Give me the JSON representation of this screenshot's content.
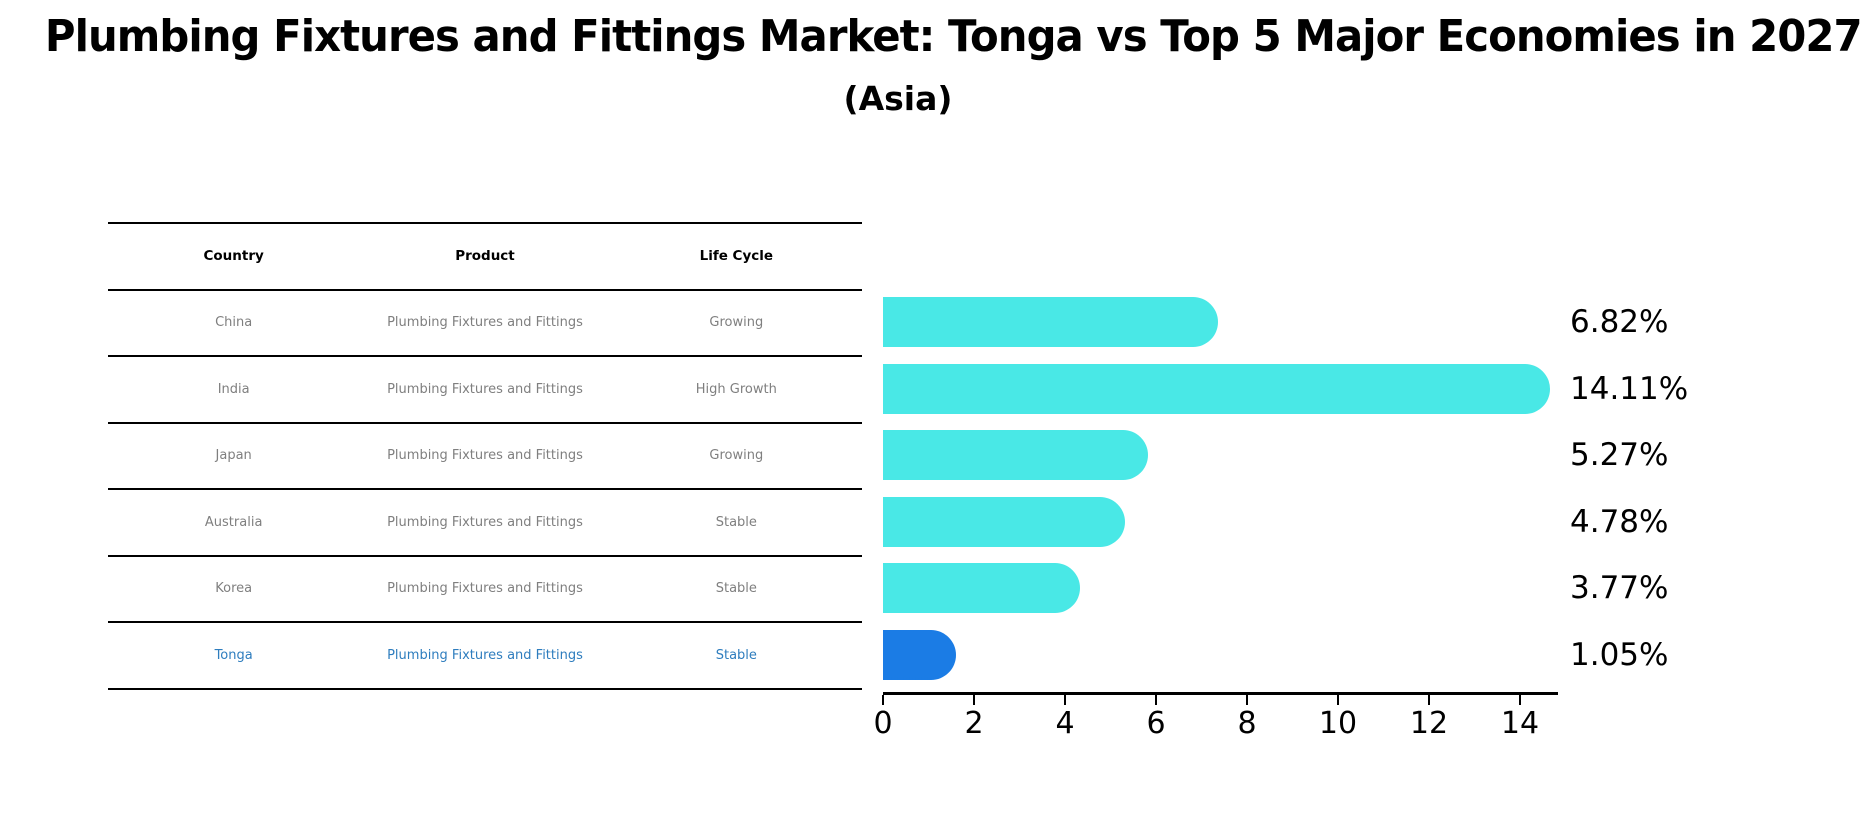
{
  "header": {
    "title": "Plumbing Fixtures and Fittings Market: Tonga vs Top 5 Major Economies in 2027",
    "subtitle": "(Asia)"
  },
  "table": {
    "headers": [
      "Country",
      "Product",
      "Life Cycle"
    ],
    "rows": [
      {
        "country": "China",
        "product": "Plumbing Fixtures and Fittings",
        "life_cycle": "Growing",
        "highlighted": false
      },
      {
        "country": "India",
        "product": "Plumbing Fixtures and Fittings",
        "life_cycle": "High Growth",
        "highlighted": false
      },
      {
        "country": "Japan",
        "product": "Plumbing Fixtures and Fittings",
        "life_cycle": "Growing",
        "highlighted": false
      },
      {
        "country": "Australia",
        "product": "Plumbing Fixtures and Fittings",
        "life_cycle": "Stable",
        "highlighted": false
      },
      {
        "country": "Korea",
        "product": "Plumbing Fixtures and Fittings",
        "life_cycle": "Stable",
        "highlighted": false
      },
      {
        "country": "Tonga",
        "product": "Plumbing Fixtures and Fittings",
        "life_cycle": "Stable",
        "highlighted": true
      }
    ]
  },
  "chart_data": {
    "type": "bar",
    "orientation": "horizontal",
    "categories": [
      "China",
      "India",
      "Japan",
      "Australia",
      "Korea",
      "Tonga"
    ],
    "values": [
      6.82,
      14.11,
      5.27,
      4.78,
      3.77,
      1.05
    ],
    "value_labels": [
      "6.82%",
      "14.11%",
      "5.27%",
      "4.78%",
      "3.77%",
      "1.05%"
    ],
    "x_ticks": [
      "0",
      "2",
      "4",
      "6",
      "8",
      "10",
      "12",
      "14"
    ],
    "xlim": [
      0,
      14.8
    ],
    "grid": false,
    "legend": false,
    "bar_color": "#49E8E6",
    "highlight_index": 5,
    "highlight_color": "#1B7CE5",
    "highlight_border_style": "dotted",
    "rounded_caps": true
  },
  "colors": {
    "title_text": "#000000",
    "table_text": "#7f7f7f",
    "table_header_text": "#000000",
    "highlight_text": "#2E7DBE",
    "axis": "#000000",
    "background": "#ffffff"
  }
}
